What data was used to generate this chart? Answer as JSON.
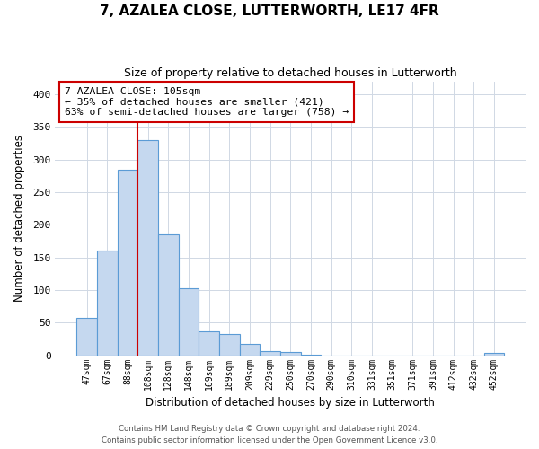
{
  "title": "7, AZALEA CLOSE, LUTTERWORTH, LE17 4FR",
  "subtitle": "Size of property relative to detached houses in Lutterworth",
  "xlabel": "Distribution of detached houses by size in Lutterworth",
  "ylabel": "Number of detached properties",
  "bar_labels": [
    "47sqm",
    "67sqm",
    "88sqm",
    "108sqm",
    "128sqm",
    "148sqm",
    "169sqm",
    "189sqm",
    "209sqm",
    "229sqm",
    "250sqm",
    "270sqm",
    "290sqm",
    "310sqm",
    "331sqm",
    "351sqm",
    "371sqm",
    "391sqm",
    "412sqm",
    "432sqm",
    "452sqm"
  ],
  "bar_values": [
    57,
    160,
    284,
    330,
    185,
    103,
    37,
    32,
    18,
    6,
    5,
    1,
    0,
    0,
    0,
    0,
    0,
    0,
    0,
    0,
    3
  ],
  "bar_color": "#c5d8ef",
  "bar_edge_color": "#5b9bd5",
  "ylim": [
    0,
    420
  ],
  "yticks": [
    0,
    50,
    100,
    150,
    200,
    250,
    300,
    350,
    400
  ],
  "vline_color": "#cc0000",
  "annotation_title": "7 AZALEA CLOSE: 105sqm",
  "annotation_line1": "← 35% of detached houses are smaller (421)",
  "annotation_line2": "63% of semi-detached houses are larger (758) →",
  "annotation_box_color": "#ffffff",
  "annotation_box_edge": "#cc0000",
  "footer1": "Contains HM Land Registry data © Crown copyright and database right 2024.",
  "footer2": "Contains public sector information licensed under the Open Government Licence v3.0.",
  "background_color": "#ffffff",
  "grid_color": "#d0d8e4"
}
